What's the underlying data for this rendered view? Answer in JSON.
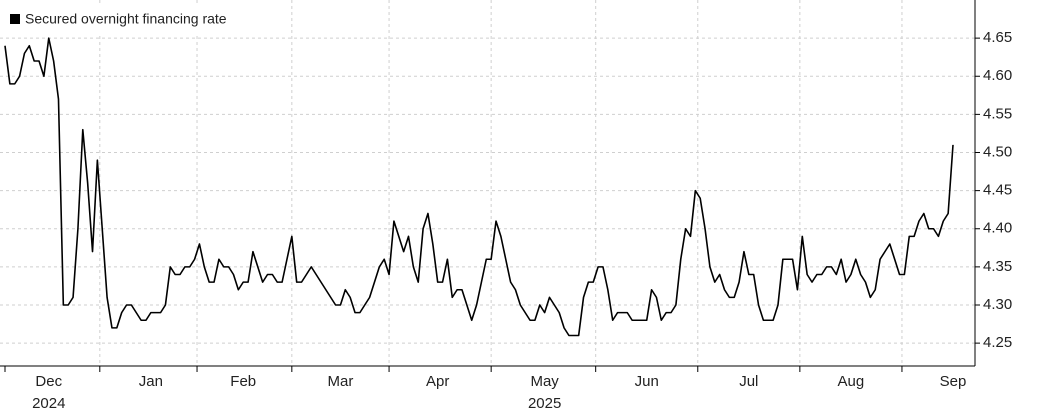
{
  "chart_data": {
    "type": "line",
    "legend": "top-left",
    "grid": true,
    "series": [
      {
        "name": "Secured overnight financing rate",
        "color": "#000000",
        "values": [
          4.64,
          4.59,
          4.59,
          4.6,
          4.63,
          4.64,
          4.62,
          4.62,
          4.6,
          4.65,
          4.62,
          4.57,
          4.3,
          4.3,
          4.31,
          4.4,
          4.53,
          4.46,
          4.37,
          4.49,
          4.4,
          4.31,
          4.27,
          4.27,
          4.29,
          4.3,
          4.3,
          4.29,
          4.28,
          4.28,
          4.29,
          4.29,
          4.29,
          4.3,
          4.35,
          4.34,
          4.34,
          4.35,
          4.35,
          4.36,
          4.38,
          4.35,
          4.33,
          4.33,
          4.36,
          4.35,
          4.35,
          4.34,
          4.32,
          4.33,
          4.33,
          4.37,
          4.35,
          4.33,
          4.34,
          4.34,
          4.33,
          4.33,
          4.36,
          4.39,
          4.33,
          4.33,
          4.34,
          4.35,
          4.34,
          4.33,
          4.32,
          4.31,
          4.3,
          4.3,
          4.32,
          4.31,
          4.29,
          4.29,
          4.3,
          4.31,
          4.33,
          4.35,
          4.36,
          4.34,
          4.41,
          4.39,
          4.37,
          4.39,
          4.35,
          4.33,
          4.4,
          4.42,
          4.38,
          4.33,
          4.33,
          4.36,
          4.31,
          4.32,
          4.32,
          4.3,
          4.28,
          4.3,
          4.33,
          4.36,
          4.36,
          4.41,
          4.39,
          4.36,
          4.33,
          4.32,
          4.3,
          4.29,
          4.28,
          4.28,
          4.3,
          4.29,
          4.31,
          4.3,
          4.29,
          4.27,
          4.26,
          4.26,
          4.26,
          4.31,
          4.33,
          4.33,
          4.35,
          4.35,
          4.32,
          4.28,
          4.29,
          4.29,
          4.29,
          4.28,
          4.28,
          4.28,
          4.28,
          4.32,
          4.31,
          4.28,
          4.29,
          4.29,
          4.3,
          4.36,
          4.4,
          4.39,
          4.45,
          4.44,
          4.4,
          4.35,
          4.33,
          4.34,
          4.32,
          4.31,
          4.31,
          4.33,
          4.37,
          4.34,
          4.34,
          4.3,
          4.28,
          4.28,
          4.28,
          4.3,
          4.36,
          4.36,
          4.36,
          4.32,
          4.39,
          4.34,
          4.33,
          4.34,
          4.34,
          4.35,
          4.35,
          4.34,
          4.36,
          4.33,
          4.34,
          4.36,
          4.34,
          4.33,
          4.31,
          4.32,
          4.36,
          4.37,
          4.38,
          4.36,
          4.34,
          4.34,
          4.39,
          4.39,
          4.41,
          4.42,
          4.4,
          4.4,
          4.39,
          4.41,
          4.42,
          4.51
        ]
      }
    ],
    "categories": [
      null,
      null,
      null,
      null,
      null,
      null,
      null,
      null,
      null,
      "Dec",
      null,
      null,
      null,
      null,
      null,
      null,
      null,
      null,
      null,
      null,
      null,
      null,
      null,
      null,
      null,
      null,
      null,
      null,
      null,
      null,
      "Jan",
      null,
      null,
      null,
      null,
      null,
      null,
      null,
      null,
      null,
      null,
      null,
      null,
      null,
      null,
      null,
      null,
      null,
      null,
      "Feb",
      null,
      null,
      null,
      null,
      null,
      null,
      null,
      null,
      null,
      null,
      null,
      null,
      null,
      null,
      null,
      null,
      null,
      null,
      null,
      "Mar",
      null,
      null,
      null,
      null,
      null,
      null,
      null,
      null,
      null,
      null,
      null,
      null,
      null,
      null,
      null,
      null,
      null,
      null,
      null,
      "Apr",
      null,
      null,
      null,
      null,
      null,
      null,
      null,
      null,
      null,
      null,
      null,
      null,
      null,
      null,
      null,
      null,
      null,
      null,
      null,
      null,
      null,
      "May",
      null,
      null,
      null,
      null,
      null,
      null,
      null,
      null,
      null,
      null,
      null,
      null,
      null,
      null,
      null,
      null,
      null,
      null,
      null,
      null,
      "Jun",
      null,
      null,
      null,
      null,
      null,
      null,
      null,
      null,
      null,
      null,
      null,
      null,
      null,
      null,
      null,
      null,
      null,
      null,
      null,
      null,
      "Jul",
      null,
      null,
      null,
      null,
      null,
      null,
      null,
      null,
      null,
      null,
      null,
      null,
      null,
      null,
      null,
      null,
      null,
      null,
      null,
      null,
      "Aug",
      null,
      null,
      null,
      null,
      null,
      null,
      null,
      null,
      null,
      null,
      null,
      null,
      null,
      null,
      null,
      null,
      null,
      null,
      null,
      null,
      "Sep"
    ],
    "year_labels": [
      null,
      null,
      null,
      null,
      null,
      null,
      null,
      null,
      null,
      "2024",
      null,
      null,
      null,
      null,
      null,
      null,
      null,
      null,
      null,
      null,
      null,
      null,
      null,
      null,
      null,
      null,
      null,
      null,
      null,
      null,
      null,
      null,
      null,
      null,
      null,
      null,
      null,
      null,
      null,
      null,
      null,
      null,
      null,
      null,
      null,
      null,
      null,
      null,
      null,
      null,
      null,
      null,
      null,
      null,
      null,
      null,
      null,
      null,
      null,
      null,
      null,
      null,
      null,
      null,
      null,
      null,
      null,
      null,
      null,
      null,
      null,
      null,
      null,
      null,
      null,
      null,
      null,
      null,
      null,
      null,
      null,
      null,
      null,
      null,
      null,
      null,
      null,
      null,
      null,
      null,
      null,
      null,
      null,
      null,
      null,
      null,
      null,
      null,
      null,
      null,
      null,
      null,
      null,
      null,
      null,
      null,
      null,
      null,
      null,
      null,
      null,
      "2025",
      null,
      null,
      null,
      null,
      null,
      null,
      null,
      null,
      null,
      null,
      null,
      null,
      null,
      null,
      null,
      null,
      null,
      null,
      null,
      null,
      null,
      null,
      null,
      null,
      null,
      null,
      null,
      null,
      null,
      null,
      null,
      null,
      null,
      null,
      null,
      null,
      null,
      null,
      null,
      null,
      null,
      null,
      null,
      null,
      null,
      null,
      null,
      null,
      null,
      null,
      null,
      null,
      null,
      null,
      null,
      null,
      null,
      null,
      null,
      null,
      null,
      null,
      null,
      null,
      null,
      null,
      null,
      null,
      null,
      null,
      null,
      null,
      null,
      null,
      null,
      null,
      null,
      null,
      null,
      null,
      null,
      null,
      null,
      null
    ],
    "ylim": [
      4.22,
      4.7
    ],
    "yticks": [
      4.25,
      {
        "value": 4.3,
        "label": "4.30"
      },
      4.35,
      {
        "value": 4.4,
        "label": "4.40"
      },
      4.45,
      {
        "value": 4.5,
        "label": "4.50"
      },
      4.55,
      {
        "value": 4.6,
        "label": "4.60"
      },
      4.65
    ]
  }
}
